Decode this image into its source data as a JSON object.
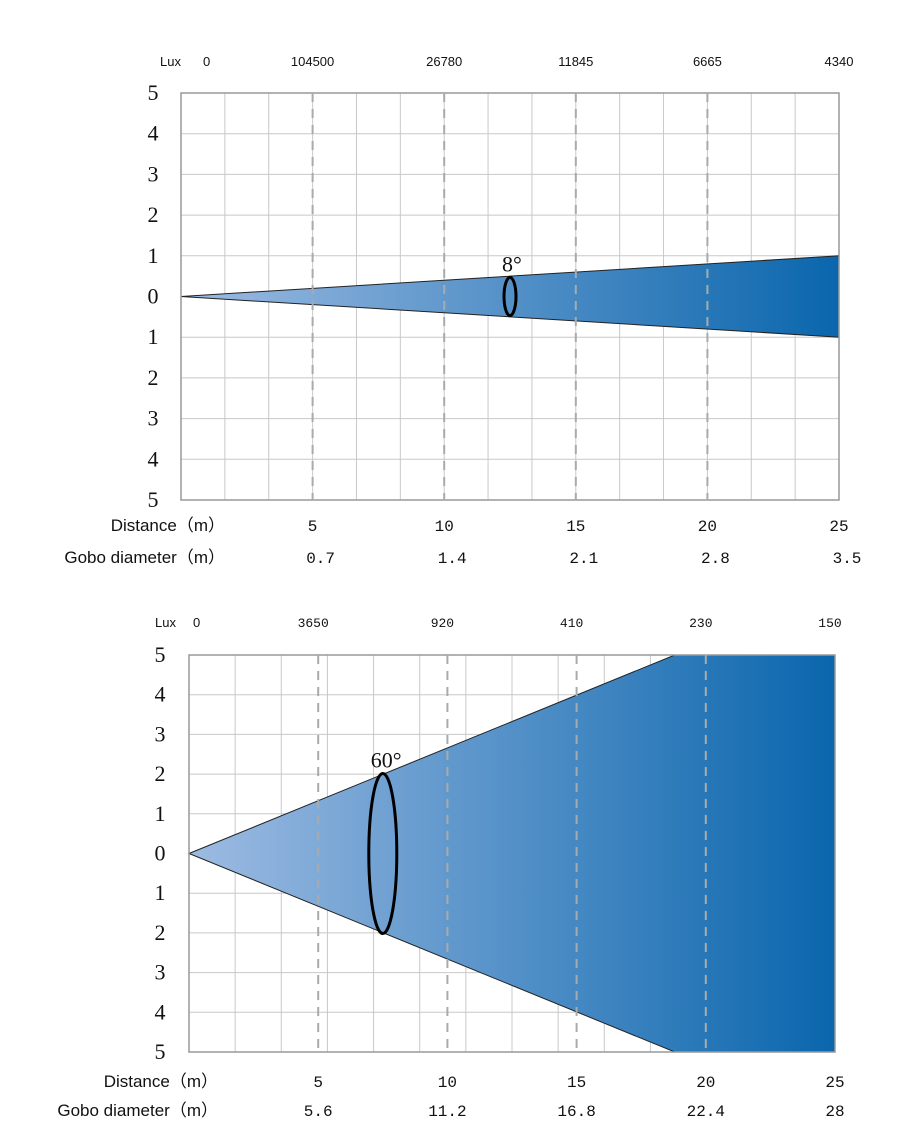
{
  "colors": {
    "beam_light": "#9dbbe2",
    "beam_dark": "#0a66ad",
    "grid": "#c8c8c8",
    "dash": "#aaaaaa",
    "border": "#999999"
  },
  "chart_data": [
    {
      "type": "area",
      "beam_angle_label": "8°",
      "lux_label": "Lux",
      "lux_origin": "0",
      "lux_values": [
        "104500",
        "26780",
        "11845",
        "6665",
        "4340"
      ],
      "distance_label": "Distance（m）",
      "distances": [
        "5",
        "10",
        "15",
        "20",
        "25"
      ],
      "gobo_label": "Gobo diameter（m）",
      "gobo_diameters": [
        "0.7",
        "1.4",
        "2.1",
        "2.8",
        "3.5"
      ],
      "y_ticks": [
        "5",
        "4",
        "3",
        "2",
        "1",
        "0",
        "1",
        "2",
        "3",
        "4",
        "5"
      ],
      "x_range": [
        0,
        25
      ],
      "y_range": [
        -5,
        5
      ],
      "beam_half_angle_deg": 4,
      "ellipse_at_distance": 12.5,
      "beam_half_width_at_25m": 1.0
    },
    {
      "type": "area",
      "beam_angle_label": "60°",
      "lux_label": "Lux",
      "lux_origin": "0",
      "lux_values": [
        "3650",
        "920",
        "410",
        "230",
        "150"
      ],
      "distance_label": "Distance（m）",
      "distances": [
        "5",
        "10",
        "15",
        "20",
        "25"
      ],
      "gobo_label": "Gobo diameter（m）",
      "gobo_diameters": [
        "5.6",
        "11.2",
        "16.8",
        "22.4",
        "28"
      ],
      "y_ticks": [
        "5",
        "4",
        "3",
        "2",
        "1",
        "0",
        "1",
        "2",
        "3",
        "4",
        "5"
      ],
      "x_range": [
        0,
        25
      ],
      "y_range": [
        -5,
        5
      ],
      "beam_half_width_at_18_8m": 5.0,
      "ellipse_at_distance": 7.5
    }
  ]
}
